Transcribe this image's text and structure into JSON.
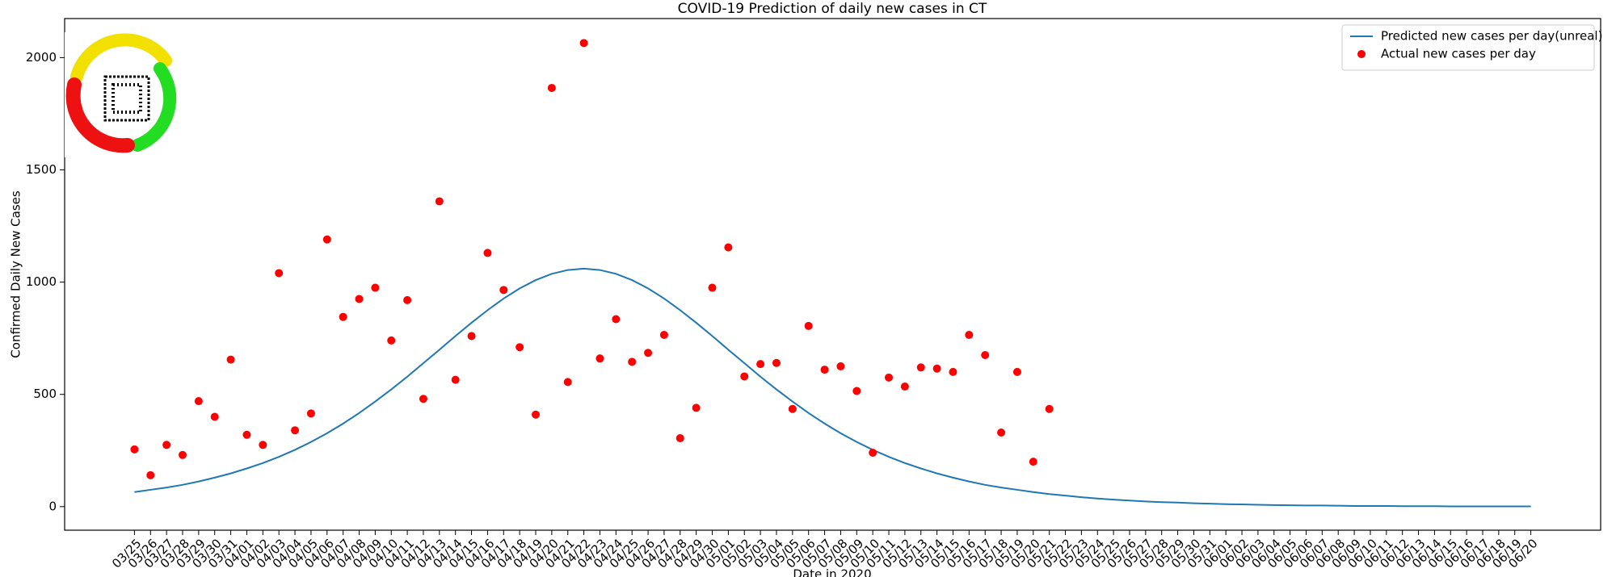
{
  "chart_data": {
    "type": "line-scatter",
    "title": "COVID-19 Prediction of daily new cases in CT",
    "xlabel": "Date in 2020",
    "ylabel": "Confirmed Daily New Cases",
    "categories": [
      "03/25",
      "03/26",
      "03/27",
      "03/28",
      "03/29",
      "03/30",
      "03/31",
      "04/01",
      "04/02",
      "04/03",
      "04/04",
      "04/05",
      "04/06",
      "04/07",
      "04/08",
      "04/09",
      "04/10",
      "04/11",
      "04/12",
      "04/13",
      "04/14",
      "04/15",
      "04/16",
      "04/17",
      "04/18",
      "04/19",
      "04/20",
      "04/21",
      "04/22",
      "04/23",
      "04/24",
      "04/25",
      "04/26",
      "04/27",
      "04/28",
      "04/29",
      "04/30",
      "05/01",
      "05/02",
      "05/03",
      "05/04",
      "05/05",
      "05/06",
      "05/07",
      "05/08",
      "05/09",
      "05/10",
      "05/11",
      "05/12",
      "05/13",
      "05/14",
      "05/15",
      "05/16",
      "05/17",
      "05/18",
      "05/19",
      "05/20",
      "05/21",
      "05/22",
      "05/23",
      "05/24",
      "05/25",
      "05/26",
      "05/27",
      "05/28",
      "05/29",
      "05/30",
      "05/31",
      "06/01",
      "06/02",
      "06/03",
      "06/04",
      "06/05",
      "06/06",
      "06/07",
      "06/08",
      "06/09",
      "06/10",
      "06/11",
      "06/12",
      "06/13",
      "06/14",
      "06/15",
      "06/16",
      "06/17",
      "06/18",
      "06/19",
      "06/20"
    ],
    "series": [
      {
        "name": "Predicted new cases per day(unreal)",
        "kind": "line",
        "color": "#1f77b4",
        "values": [
          65,
          75,
          85,
          97,
          112,
          129,
          148,
          170,
          194,
          222,
          253,
          288,
          327,
          370,
          417,
          468,
          522,
          579,
          639,
          699,
          760,
          819,
          875,
          927,
          972,
          1009,
          1037,
          1054,
          1060,
          1054,
          1037,
          1009,
          972,
          927,
          875,
          819,
          760,
          699,
          639,
          579,
          522,
          468,
          417,
          370,
          327,
          288,
          253,
          222,
          194,
          170,
          148,
          129,
          112,
          97,
          85,
          75,
          65,
          56,
          49,
          42,
          36,
          31,
          27,
          23,
          20,
          18,
          15,
          13,
          11,
          10,
          8,
          7,
          6,
          5,
          5,
          4,
          3,
          3,
          3,
          2,
          2,
          2,
          1,
          1,
          1,
          1,
          1,
          1
        ]
      },
      {
        "name": "Actual new cases per day",
        "kind": "scatter",
        "color": "#ff0000",
        "values": [
          255,
          140,
          275,
          230,
          470,
          400,
          655,
          320,
          275,
          1040,
          340,
          415,
          1190,
          845,
          925,
          975,
          740,
          920,
          480,
          1360,
          565,
          760,
          1130,
          965,
          710,
          410,
          1865,
          555,
          2065,
          660,
          835,
          645,
          685,
          765,
          305,
          440,
          975,
          1155,
          580,
          635,
          640,
          435,
          805,
          610,
          625,
          515,
          240,
          575,
          535,
          620,
          615,
          600,
          765,
          675,
          330,
          600,
          200,
          435,
          null,
          null,
          null,
          null,
          null,
          null,
          null,
          null,
          null,
          null,
          null,
          null,
          null,
          null,
          null,
          null,
          null,
          null,
          null,
          null,
          null,
          null,
          null,
          null,
          null,
          null,
          null,
          null,
          null,
          null
        ]
      }
    ],
    "ylim": [
      -105,
      2174
    ],
    "yticks": [
      0,
      500,
      1000,
      1500,
      2000
    ],
    "legend": "upper right"
  }
}
